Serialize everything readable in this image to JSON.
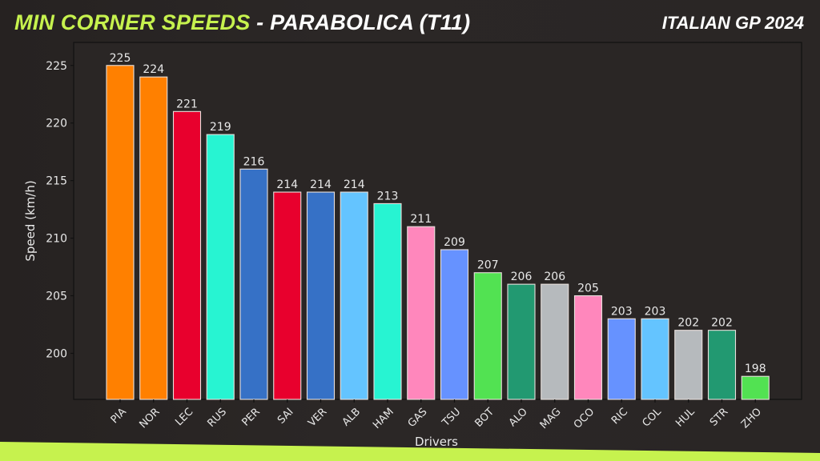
{
  "header": {
    "title_accent": "MIN CORNER SPEEDS",
    "title_separator": " - ",
    "title_rest": "PARABOLICA (T11)",
    "subtitle": "ITALIAN GP 2024"
  },
  "colors": {
    "background": "#2a2625",
    "accent": "#c6f24e",
    "text": "#e8e8e8"
  },
  "chart_data": {
    "type": "bar",
    "title": "MIN CORNER SPEEDS - PARABOLICA (T11)",
    "subtitle": "ITALIAN GP 2024",
    "xlabel": "Drivers",
    "ylabel": "Speed (km/h)",
    "ylim": [
      196,
      227
    ],
    "yticks": [
      200,
      205,
      210,
      215,
      220,
      225
    ],
    "grid": false,
    "legend": null,
    "categories": [
      "PIA",
      "NOR",
      "LEC",
      "RUS",
      "PER",
      "SAI",
      "VER",
      "ALB",
      "HAM",
      "GAS",
      "TSU",
      "BOT",
      "ALO",
      "MAG",
      "OCO",
      "RIC",
      "COL",
      "HUL",
      "STR",
      "ZHO"
    ],
    "values": [
      225,
      224,
      221,
      219,
      216,
      214,
      214,
      214,
      213,
      211,
      209,
      207,
      206,
      206,
      205,
      203,
      203,
      202,
      202,
      198
    ],
    "bar_colors": [
      "#ff8000",
      "#ff8000",
      "#e8002d",
      "#27f4d2",
      "#3671c6",
      "#e8002d",
      "#3671c6",
      "#64c4ff",
      "#27f4d2",
      "#ff87bc",
      "#6692ff",
      "#52e252",
      "#229971",
      "#b6babd",
      "#ff87bc",
      "#6692ff",
      "#64c4ff",
      "#b6babd",
      "#229971",
      "#52e252"
    ],
    "data_labels": [
      "225",
      "224",
      "221",
      "219",
      "216",
      "214",
      "214",
      "214",
      "213",
      "211",
      "209",
      "207",
      "206",
      "206",
      "205",
      "203",
      "203",
      "202",
      "202",
      "198"
    ]
  }
}
